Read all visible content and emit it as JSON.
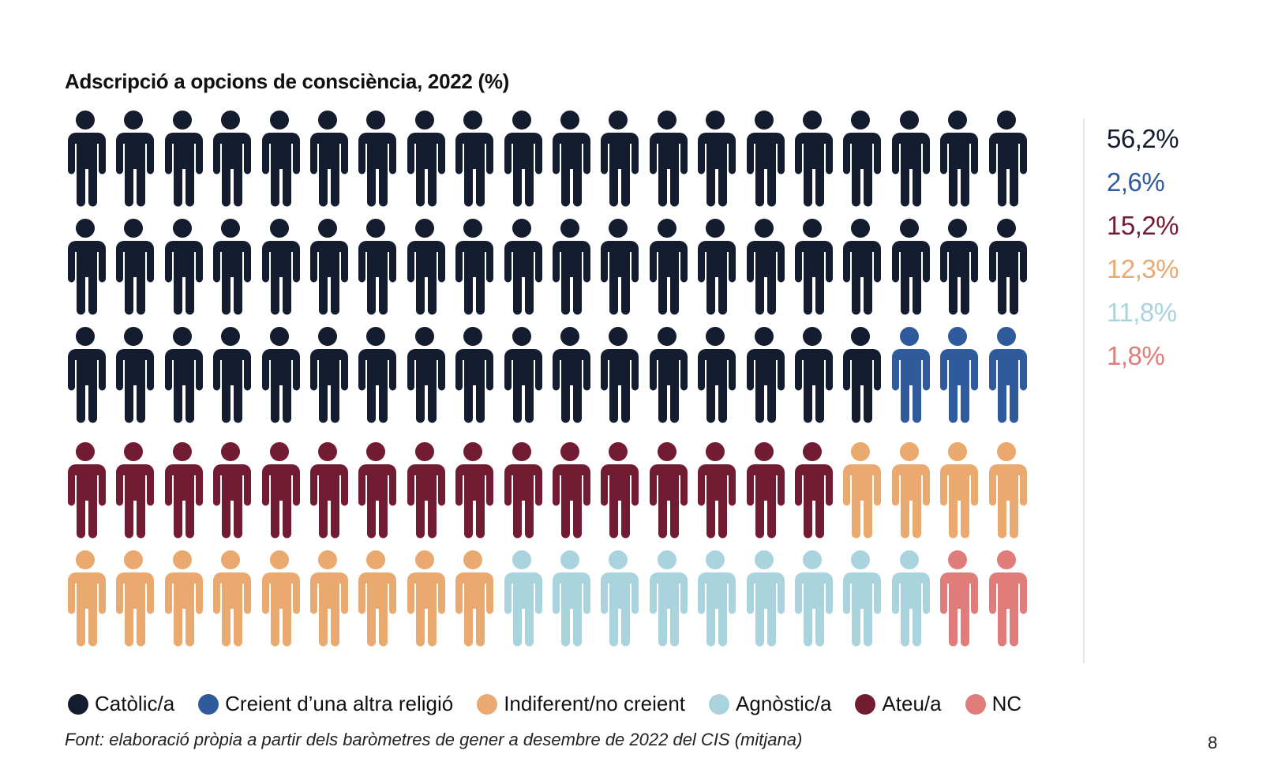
{
  "title": "Adscripció a opcions de consciència, 2022 (%)",
  "colors": {
    "catolic": "#131d2f",
    "altra": "#2f5a9c",
    "ateu": "#721c34",
    "indiferent": "#e9a96f",
    "agnostic": "#a9d3dd",
    "nc": "#e07c7a"
  },
  "percentages": [
    {
      "label": "56,2%",
      "color": "#131d2f"
    },
    {
      "label": "2,6%",
      "color": "#2f5a9c"
    },
    {
      "label": "15,2%",
      "color": "#721c34"
    },
    {
      "label": "12,3%",
      "color": "#e9a96f"
    },
    {
      "label": "11,8%",
      "color": "#a9d3dd"
    },
    {
      "label": "1,8%",
      "color": "#e07c7a"
    }
  ],
  "legend": [
    {
      "label": "Catòlic/a",
      "color": "#131d2f"
    },
    {
      "label": "Creient d’una altra religió",
      "color": "#2f5a9c"
    },
    {
      "label": "Indiferent/no creient",
      "color": "#e9a96f"
    },
    {
      "label": "Agnòstic/a",
      "color": "#a9d3dd"
    },
    {
      "label": "Ateu/a",
      "color": "#721c34"
    },
    {
      "label": "NC",
      "color": "#e07c7a"
    }
  ],
  "source": "Font: elaboració pròpia a partir dels baròmetres de gener a desembre de 2022 del CIS (mitjana)",
  "page_number": "8",
  "chart_data": {
    "type": "pictogram",
    "title": "Adscripció a opcions de consciència, 2022 (%)",
    "icon": "person-icon",
    "grid": {
      "rows": 5,
      "columns": 20,
      "total_icons": 100
    },
    "categories": [
      "Catòlic/a",
      "Creient d’una altra religió",
      "Ateu/a",
      "Indiferent/no creient",
      "Agnòstic/a",
      "NC"
    ],
    "values": [
      56.2,
      2.6,
      15.2,
      12.3,
      11.8,
      1.8
    ],
    "icon_counts": [
      57,
      3,
      16,
      13,
      9,
      2
    ],
    "colors": [
      "#131d2f",
      "#2f5a9c",
      "#721c34",
      "#e9a96f",
      "#a9d3dd",
      "#e07c7a"
    ],
    "rows": [
      {
        "segments": [
          {
            "category": "Catòlic/a",
            "count": 20
          }
        ]
      },
      {
        "segments": [
          {
            "category": "Catòlic/a",
            "count": 20
          }
        ]
      },
      {
        "segments": [
          {
            "category": "Catòlic/a",
            "count": 17
          },
          {
            "category": "Creient d’una altra religió",
            "count": 3
          }
        ]
      },
      {
        "segments": [
          {
            "category": "Ateu/a",
            "count": 16
          },
          {
            "category": "Indiferent/no creient",
            "count": 4
          }
        ]
      },
      {
        "segments": [
          {
            "category": "Indiferent/no creient",
            "count": 9
          },
          {
            "category": "Agnòstic/a",
            "count": 9
          },
          {
            "category": "NC",
            "count": 2
          }
        ]
      }
    ],
    "legend_position": "bottom",
    "unit": "%"
  }
}
